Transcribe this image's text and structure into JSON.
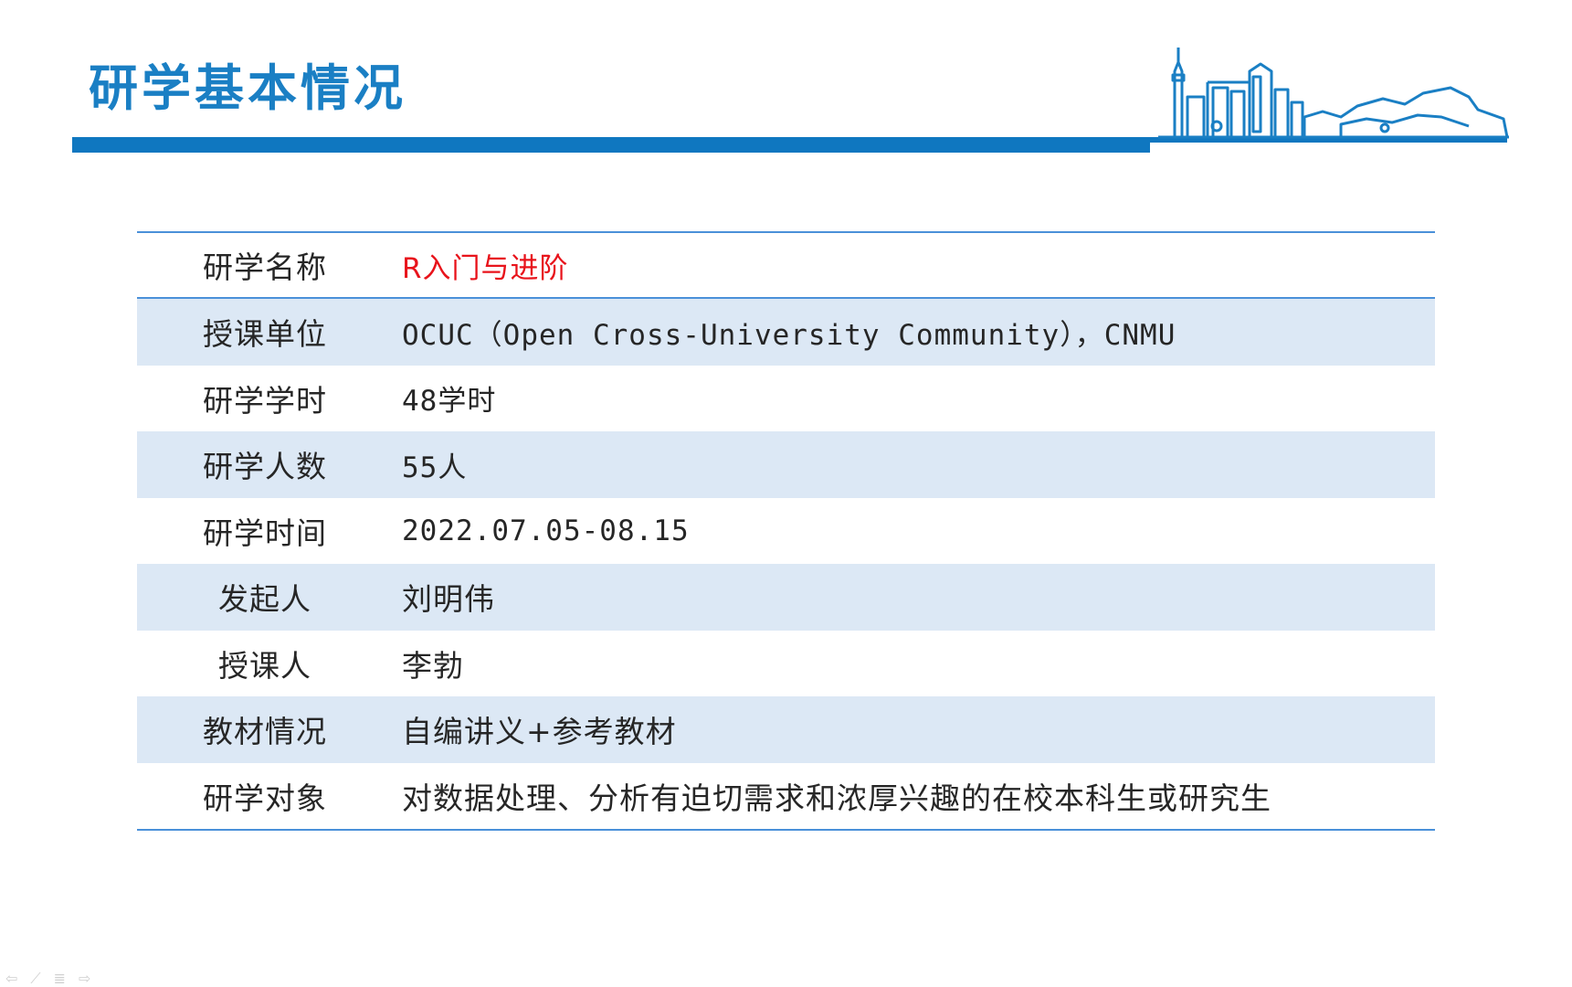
{
  "slide": {
    "title": "研学基本情况"
  },
  "table": {
    "rows": [
      {
        "label": "研学名称",
        "value": "R入门与进阶"
      },
      {
        "label": "授课单位",
        "value": "OCUC（Open Cross-University Community），CNMU"
      },
      {
        "label": "研学学时",
        "value": "48学时"
      },
      {
        "label": "研学人数",
        "value": "55人"
      },
      {
        "label": "研学时间",
        "value": "2022.07.05-08.15"
      },
      {
        "label": "发起人",
        "value": "刘明伟"
      },
      {
        "label": "授课人",
        "value": "李勃"
      },
      {
        "label": "教材情况",
        "value": "自编讲义+参考教材"
      },
      {
        "label": "研学对象",
        "value": "对数据处理、分析有迫切需求和浓厚兴趣的在校本科生或研究生"
      }
    ]
  },
  "controls": {
    "prev": "⇦",
    "pen": "⟋",
    "menu": "≣",
    "next": "⇨"
  },
  "colors": {
    "title": "#1a7fc4",
    "bar": "#0f77c0",
    "row_shade": "#dce8f5",
    "rule": "#4a90d9",
    "highlight": "#e8131b"
  }
}
